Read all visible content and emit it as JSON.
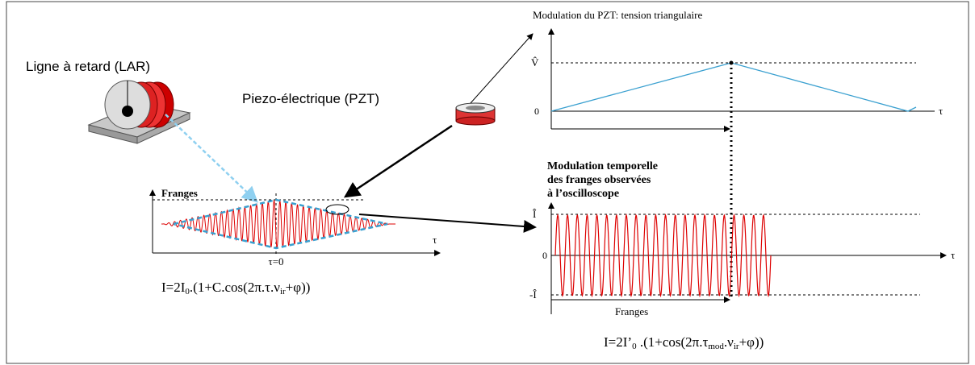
{
  "labels": {
    "delay_line": "Ligne à retard (LAR)",
    "piezo": "Piezo-électrique (PZT)"
  },
  "pzt_chart": {
    "title": "Modulation du PZT: tension triangulaire",
    "y_max_label": "V̂",
    "y_zero_label": "0",
    "x_label": "τ"
  },
  "fringe_chart": {
    "y_label": "Franges",
    "x_label": "τ",
    "center_label": "τ=0",
    "formula": [
      "I=2I",
      "0",
      ".(1+C.cos(2π.τ.ν",
      "ir",
      "+φ))"
    ]
  },
  "scope_chart": {
    "title_lines": [
      "Modulation temporelle",
      "des franges observées",
      " à l’oscilloscope"
    ],
    "y_max_label": "Î",
    "y_zero_label": "0",
    "y_min_label": "-Î",
    "x_label": "τ",
    "span_label": "Franges",
    "formula": [
      "I=2I’",
      "0",
      " .(1+cos(2π.τ",
      "mod",
      ".ν",
      "ir",
      "+φ))"
    ]
  }
}
